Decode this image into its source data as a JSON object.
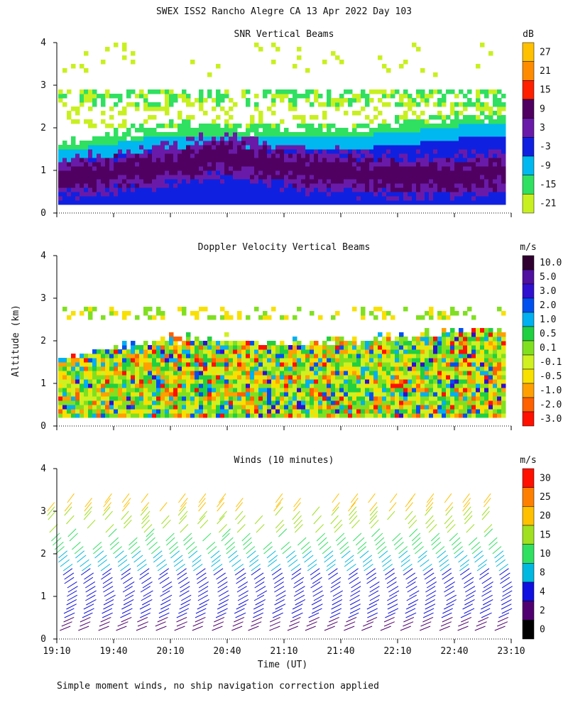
{
  "figure_title": "SWEX ISS2 Rancho Alegre CA  13 Apr 2022 Day 103",
  "footnote": "Simple moment winds, no ship navigation correction applied",
  "chart_data": [
    {
      "type": "heatmap",
      "title": "SNR Vertical Beams",
      "ylabel": "Altitude (km)",
      "xlabel": "Time (UT)",
      "ylim": [
        0,
        4
      ],
      "yticks": [
        "0",
        "1",
        "2",
        "3",
        "4"
      ],
      "xlim_hours": [
        19.1667,
        23.1667
      ],
      "colorbar": {
        "unit": "dB",
        "labels": [
          "27",
          "21",
          "15",
          "9",
          "3",
          "-3",
          "-9",
          "-15",
          "-21"
        ],
        "colors": [
          "#ffc000",
          "#ff8c00",
          "#ff2000",
          "#500060",
          "#6a1aa8",
          "#1020e0",
          "#00b8f0",
          "#30e060",
          "#c8f020"
        ]
      },
      "profile": [
        {
          "t": 19.17,
          "top": 1.6,
          "core": 0.8
        },
        {
          "t": 19.67,
          "top": 1.8,
          "core": 0.9
        },
        {
          "t": 20.17,
          "top": 2.0,
          "core": 1.1
        },
        {
          "t": 20.67,
          "top": 2.0,
          "core": 1.3
        },
        {
          "t": 21.17,
          "top": 1.9,
          "core": 1.0
        },
        {
          "t": 21.67,
          "top": 1.95,
          "core": 0.9
        },
        {
          "t": 22.17,
          "top": 2.05,
          "core": 0.8
        },
        {
          "t": 22.67,
          "top": 2.2,
          "core": 0.85
        },
        {
          "t": 23.0,
          "top": 2.25,
          "core": 0.9
        }
      ]
    },
    {
      "type": "heatmap",
      "title": "Doppler Velocity Vertical Beams",
      "ylabel": "Altitude (km)",
      "xlabel": "Time (UT)",
      "ylim": [
        0,
        4
      ],
      "yticks": [
        "0",
        "1",
        "2",
        "3",
        "4"
      ],
      "xlim_hours": [
        19.1667,
        23.1667
      ],
      "colorbar": {
        "unit": "m/s",
        "labels": [
          "10.0",
          "5.0",
          "3.0",
          "2.0",
          "1.0",
          "0.5",
          "0.1",
          "-0.1",
          "-0.5",
          "-1.0",
          "-2.0",
          "-3.0"
        ],
        "colors": [
          "#300030",
          "#5010a0",
          "#3010d0",
          "#0050f0",
          "#00b0f0",
          "#20d040",
          "#80e020",
          "#d0f020",
          "#f8e000",
          "#ffa000",
          "#ff6000",
          "#ff1000"
        ]
      }
    },
    {
      "type": "wind-barbs",
      "title": "Winds (10 minutes)",
      "ylabel": "Altitude (km)",
      "xlabel": "Time (UT)",
      "ylim": [
        0,
        4
      ],
      "yticks": [
        "0",
        "1",
        "2",
        "3",
        "4"
      ],
      "xticks": [
        "19:10",
        "19:40",
        "20:10",
        "20:40",
        "21:10",
        "21:40",
        "22:10",
        "22:40",
        "23:10"
      ],
      "xlim_hours": [
        19.1667,
        23.1667
      ],
      "colorbar": {
        "unit": "m/s",
        "labels": [
          "30",
          "25",
          "20",
          "15",
          "10",
          "8",
          "4",
          "2",
          "0"
        ],
        "colors": [
          "#ff1000",
          "#ff8000",
          "#ffc000",
          "#a0e020",
          "#30e060",
          "#00b8e0",
          "#1010e0",
          "#500070",
          "#000000"
        ]
      },
      "interval_minutes": 10,
      "profiles_hours": [
        19.17,
        19.33,
        19.5,
        19.67,
        19.83,
        20.0,
        20.17,
        20.33,
        20.5,
        20.67,
        20.83,
        21.0,
        21.17,
        21.33,
        21.5,
        21.67,
        21.83,
        22.0,
        22.17,
        22.33,
        22.5,
        22.67,
        22.83,
        23.0
      ]
    }
  ]
}
